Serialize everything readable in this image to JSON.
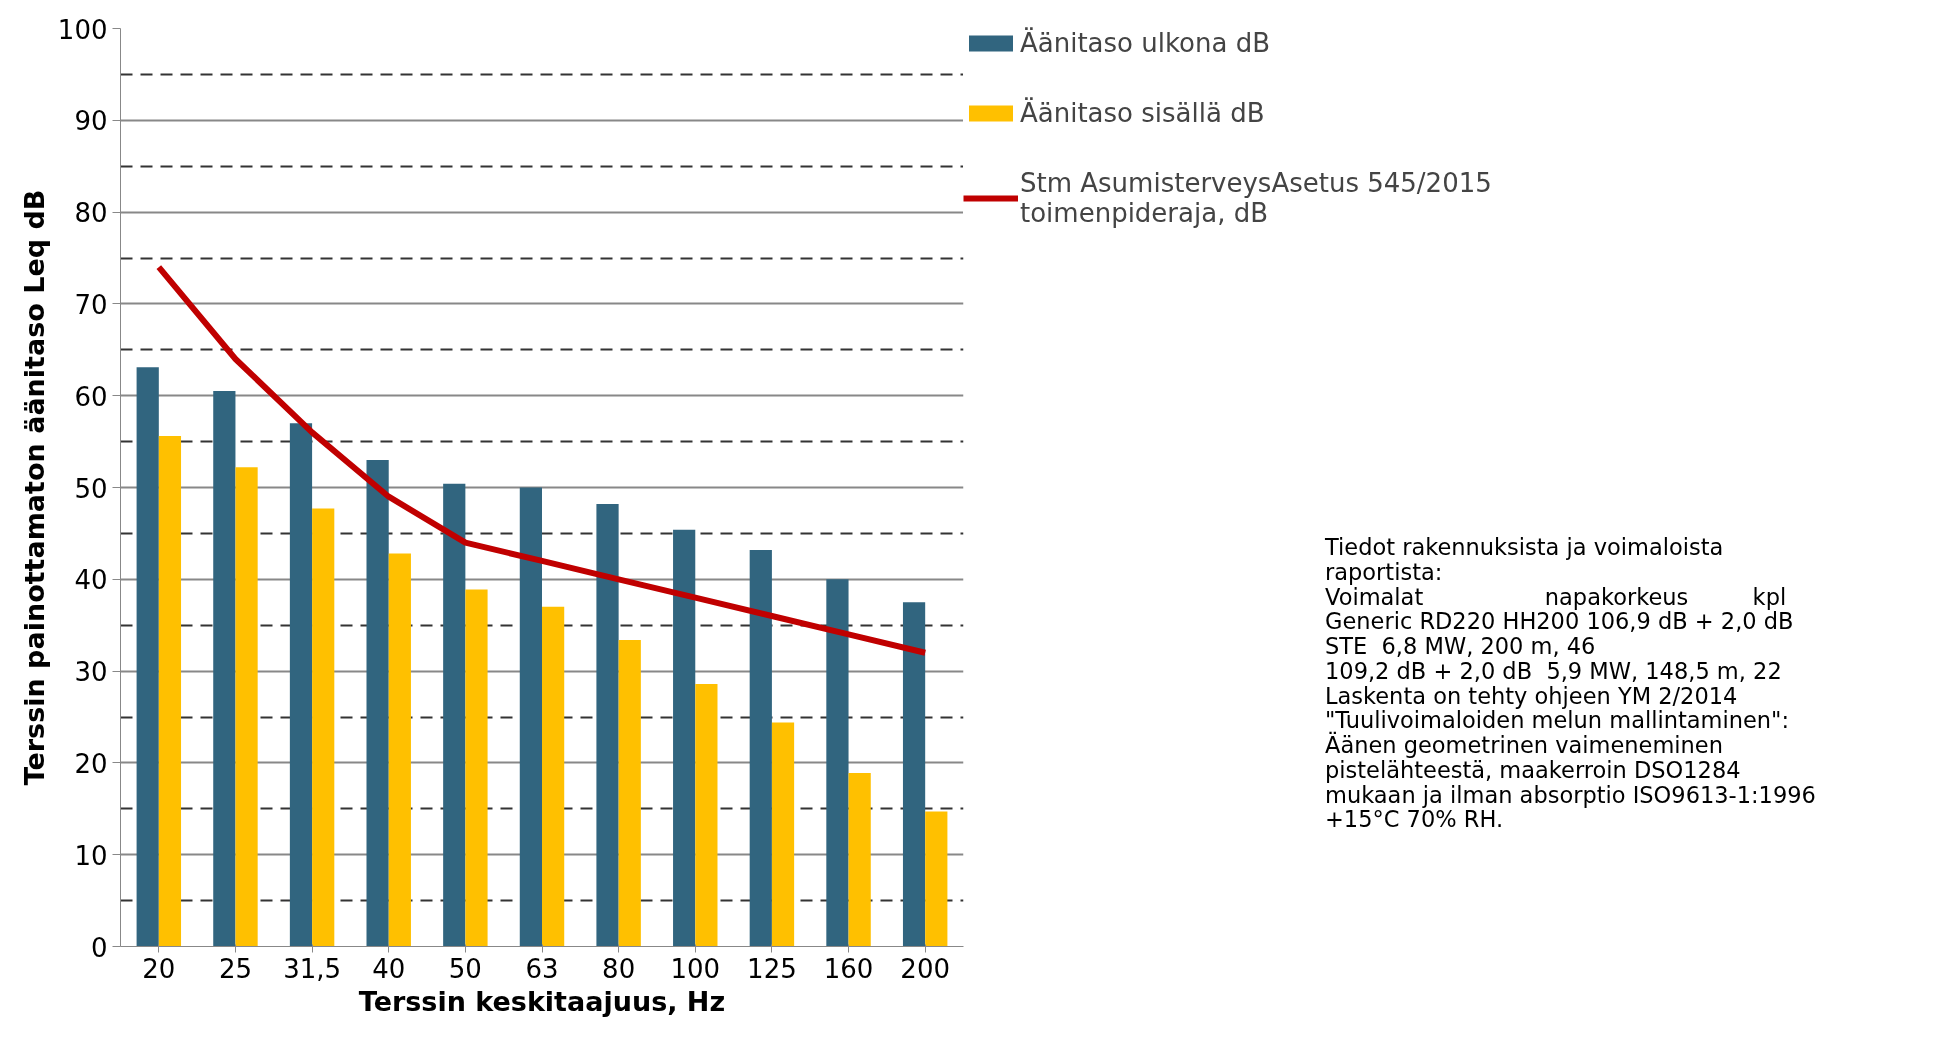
{
  "chart_data": {
    "type": "bar",
    "xlabel": "Terssin keskitaajuus, Hz",
    "ylabel": "Terssin painottamaton äänitaso Leq dB",
    "categories": [
      "20",
      "25",
      "31,5",
      "40",
      "50",
      "63",
      "80",
      "100",
      "125",
      "160",
      "200"
    ],
    "series": [
      {
        "name": "Äänitaso ulkona dB",
        "color": "#31657f",
        "values": [
          63.1,
          60.5,
          57.0,
          53.0,
          50.4,
          50.0,
          48.2,
          45.4,
          43.2,
          40.0,
          37.5
        ]
      },
      {
        "name": "Äänitaso sisällä dB",
        "color": "#ffc000",
        "values": [
          55.6,
          52.2,
          47.7,
          42.8,
          38.9,
          37.0,
          33.4,
          28.6,
          24.4,
          18.9,
          14.7
        ]
      },
      {
        "name": "Stm AsumisterveysAsetus 545/2015\ntoimenpideraja, dB",
        "type": "line",
        "color": "#c00000",
        "values": [
          74,
          64,
          56,
          49,
          44,
          42,
          40,
          38,
          36,
          34,
          32
        ]
      }
    ],
    "ylim": [
      0,
      100
    ],
    "yticks": [
      0,
      10,
      20,
      30,
      40,
      50,
      60,
      70,
      80,
      90,
      100
    ],
    "grid": "y",
    "legend": "right",
    "annotations": [
      "Tiedot rakennuksista ja voimaloista\nraportista:\nVoimalat                 napakorkeus         kpl\nGeneric RD220 HH200 106,9 dB + 2,0 dB\nSTE  6,8 MW, 200 m, 46\n109,2 dB + 2,0 dB  5,9 MW, 148,5 m, 22\nLaskenta on tehty ohjeen YM 2/2014\n\"Tuulivoimaloiden melun mallintaminen\":\nÄänen geometrinen vaimeneminen\npistelähteestä, maakerroin DSO1284\nmukaan ja ilman absorptio ISO9613-1:1996\n+15°C 70% RH."
    ]
  }
}
